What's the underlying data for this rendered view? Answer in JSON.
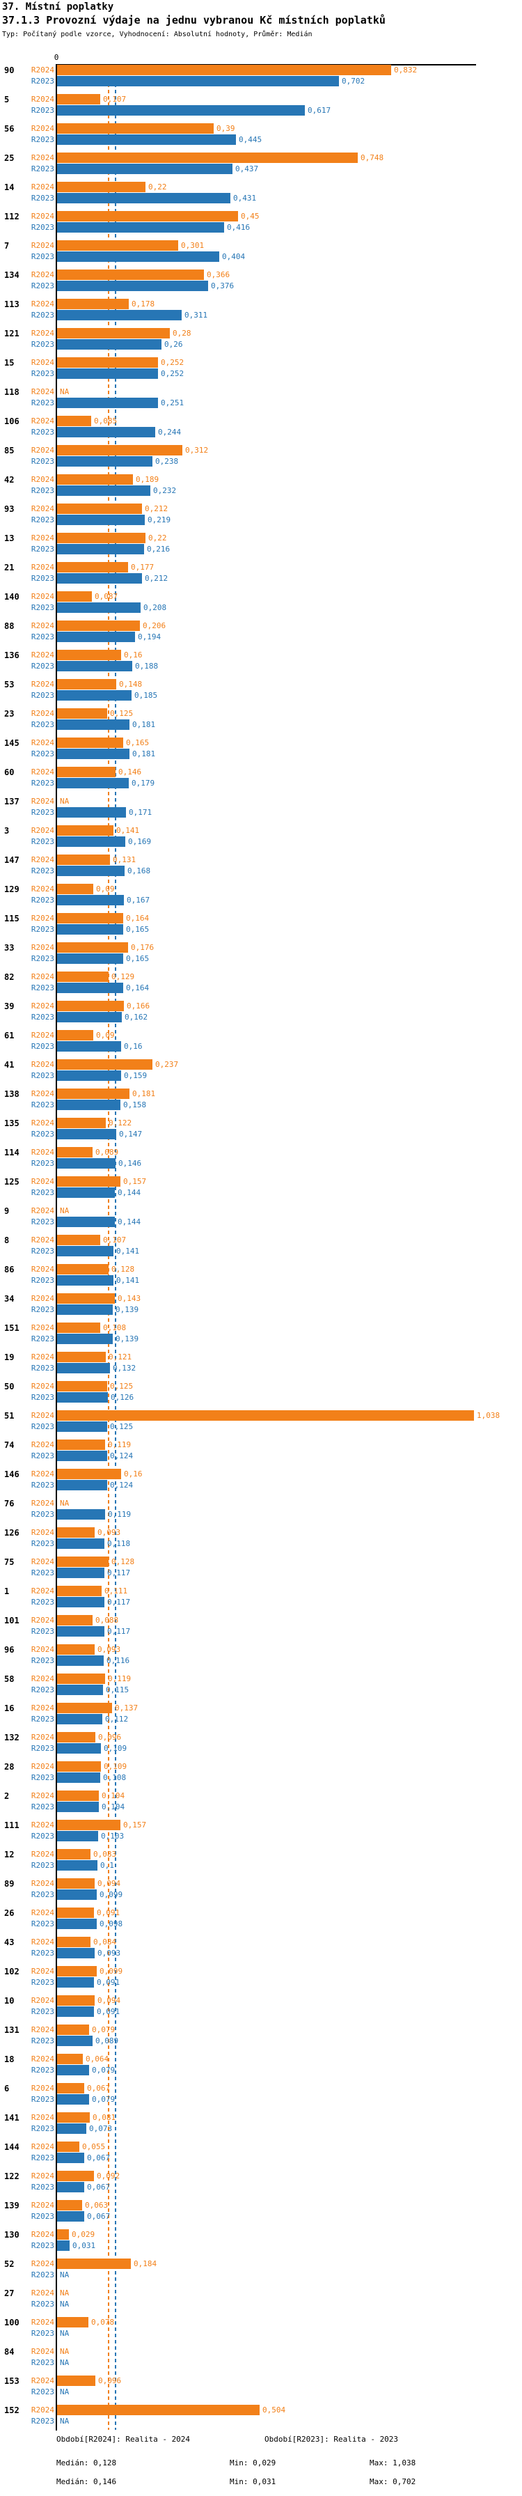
{
  "header": {
    "title": "37. Místní poplatky",
    "subtitle": "37.1.3 Provozní výdaje na jednu vybranou Kč místních poplatků",
    "meta": "Typ: Počítaný podle vzorce, Vyhodnocení: Absolutní hodnoty, Průměr: Medián"
  },
  "colors": {
    "r2024": "#f28019",
    "r2023": "#2776b5",
    "axis": "#000000",
    "background": "#ffffff"
  },
  "axis": {
    "zero": "0"
  },
  "chart_data": {
    "type": "bar",
    "orientation": "horizontal",
    "title": "37.1.3 Provozní výdaje na jednu vybranou Kč místních poplatků",
    "xlabel": "",
    "ylabel": "",
    "xlim": [
      0,
      1.045
    ],
    "x_ticks": [
      "0"
    ],
    "grid": false,
    "legend_position": "bottom",
    "categories": [
      "90",
      "5",
      "56",
      "25",
      "14",
      "112",
      "7",
      "134",
      "113",
      "121",
      "15",
      "118",
      "106",
      "85",
      "42",
      "93",
      "13",
      "21",
      "140",
      "88",
      "136",
      "53",
      "23",
      "145",
      "60",
      "137",
      "3",
      "147",
      "129",
      "115",
      "33",
      "82",
      "39",
      "61",
      "41",
      "138",
      "135",
      "114",
      "125",
      "9",
      "8",
      "86",
      "34",
      "151",
      "19",
      "50",
      "51",
      "74",
      "146",
      "76",
      "126",
      "75",
      "1",
      "101",
      "96",
      "58",
      "16",
      "132",
      "28",
      "2",
      "111",
      "12",
      "89",
      "26",
      "43",
      "102",
      "10",
      "131",
      "18",
      "6",
      "141",
      "144",
      "122",
      "139",
      "130",
      "52",
      "27",
      "100",
      "84",
      "153",
      "152"
    ],
    "series": [
      {
        "name": "R2024",
        "labels": [
          "0,832",
          "0,107",
          "0,39",
          "0,748",
          "0,22",
          "0,45",
          "0,301",
          "0,366",
          "0,178",
          "0,28",
          "0,252",
          "NA",
          "0,085",
          "0,312",
          "0,189",
          "0,212",
          "0,22",
          "0,177",
          "0,087",
          "0,206",
          "0,16",
          "0,148",
          "0,125",
          "0,165",
          "0,146",
          "NA",
          "0,141",
          "0,131",
          "0,09",
          "0,164",
          "0,176",
          "0,129",
          "0,166",
          "0,09",
          "0,237",
          "0,181",
          "0,122",
          "0,089",
          "0,157",
          "NA",
          "0,107",
          "0,128",
          "0,143",
          "0,108",
          "0,121",
          "0,125",
          "1,038",
          "0,119",
          "0,16",
          "NA",
          "0,093",
          "0,128",
          "0,111",
          "0,088",
          "0,093",
          "0,119",
          "0,137",
          "0,096",
          "0,109",
          "0,104",
          "0,157",
          "0,083",
          "0,094",
          "0,091",
          "0,084",
          "0,099",
          "0,094",
          "0,079",
          "0,064",
          "0,067",
          "0,081",
          "0,055",
          "0,092",
          "0,063",
          "0,029",
          "0,184",
          "NA",
          "0,078",
          "NA",
          "0,096",
          "0,504"
        ],
        "values": [
          0.832,
          0.107,
          0.39,
          0.748,
          0.22,
          0.45,
          0.301,
          0.366,
          0.178,
          0.28,
          0.252,
          null,
          0.085,
          0.312,
          0.189,
          0.212,
          0.22,
          0.177,
          0.087,
          0.206,
          0.16,
          0.148,
          0.125,
          0.165,
          0.146,
          null,
          0.141,
          0.131,
          0.09,
          0.164,
          0.176,
          0.129,
          0.166,
          0.09,
          0.237,
          0.181,
          0.122,
          0.089,
          0.157,
          null,
          0.107,
          0.128,
          0.143,
          0.108,
          0.121,
          0.125,
          1.038,
          0.119,
          0.16,
          null,
          0.093,
          0.128,
          0.111,
          0.088,
          0.093,
          0.119,
          0.137,
          0.096,
          0.109,
          0.104,
          0.157,
          0.083,
          0.094,
          0.091,
          0.084,
          0.099,
          0.094,
          0.079,
          0.064,
          0.067,
          0.081,
          0.055,
          0.092,
          0.063,
          0.029,
          0.184,
          null,
          0.078,
          null,
          0.096,
          0.504
        ]
      },
      {
        "name": "R2023",
        "labels": [
          "0,702",
          "0,617",
          "0,445",
          "0,437",
          "0,431",
          "0,416",
          "0,404",
          "0,376",
          "0,311",
          "0,26",
          "0,252",
          "0,251",
          "0,244",
          "0,238",
          "0,232",
          "0,219",
          "0,216",
          "0,212",
          "0,208",
          "0,194",
          "0,188",
          "0,185",
          "0,181",
          "0,181",
          "0,179",
          "0,171",
          "0,169",
          "0,168",
          "0,167",
          "0,165",
          "0,165",
          "0,164",
          "0,162",
          "0,16",
          "0,159",
          "0,158",
          "0,147",
          "0,146",
          "0,144",
          "0,144",
          "0,141",
          "0,141",
          "0,139",
          "0,139",
          "0,132",
          "0,126",
          "0,125",
          "0,124",
          "0,124",
          "0,119",
          "0,118",
          "0,117",
          "0,117",
          "0,117",
          "0,116",
          "0,115",
          "0,112",
          "0,109",
          "0,108",
          "0,104",
          "0,103",
          "0,1",
          "0,099",
          "0,098",
          "0,093",
          "0,091",
          "0,091",
          "0,089",
          "0,079",
          "0,079",
          "0,073",
          "0,067",
          "0,067",
          "0,067",
          "0,031",
          "NA",
          "NA",
          "NA",
          "NA",
          "NA",
          "NA"
        ],
        "values": [
          0.702,
          0.617,
          0.445,
          0.437,
          0.431,
          0.416,
          0.404,
          0.376,
          0.311,
          0.26,
          0.252,
          0.251,
          0.244,
          0.238,
          0.232,
          0.219,
          0.216,
          0.212,
          0.208,
          0.194,
          0.188,
          0.185,
          0.181,
          0.181,
          0.179,
          0.171,
          0.169,
          0.168,
          0.167,
          0.165,
          0.165,
          0.164,
          0.162,
          0.16,
          0.159,
          0.158,
          0.147,
          0.146,
          0.144,
          0.144,
          0.141,
          0.141,
          0.139,
          0.139,
          0.132,
          0.126,
          0.125,
          0.124,
          0.124,
          0.119,
          0.118,
          0.117,
          0.117,
          0.117,
          0.116,
          0.115,
          0.112,
          0.109,
          0.108,
          0.104,
          0.103,
          0.1,
          0.099,
          0.098,
          0.093,
          0.091,
          0.091,
          0.089,
          0.079,
          0.079,
          0.073,
          0.067,
          0.067,
          0.067,
          0.031,
          null,
          null,
          null,
          null,
          null,
          null
        ]
      }
    ],
    "median_lines": {
      "R2024": 0.128,
      "R2023": 0.146
    },
    "na_text": "NA"
  },
  "legend": {
    "r2024": {
      "label": "Období[R2024]: Realita - 2024",
      "median": "Medián: 0,128",
      "min": "Min: 0,029",
      "max": "Max: 1,038"
    },
    "r2023": {
      "label": "Období[R2023]: Realita - 2023",
      "median": "Medián: 0,146",
      "min": "Min: 0,031",
      "max": "Max: 0,702"
    }
  }
}
